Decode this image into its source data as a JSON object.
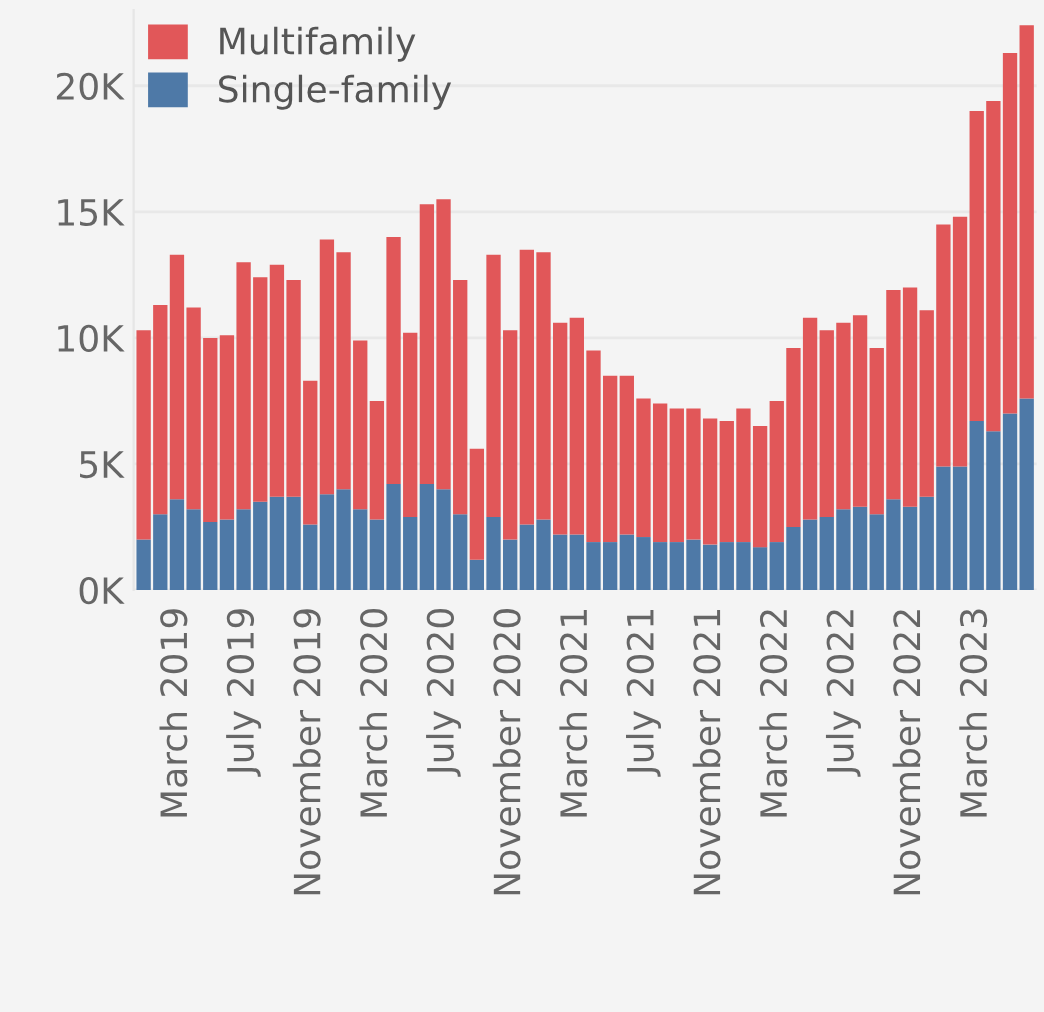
{
  "chart_data": {
    "type": "bar",
    "stacked": true,
    "categories": [
      null,
      null,
      "March 2019",
      null,
      null,
      null,
      "July 2019",
      null,
      null,
      null,
      "November 2019",
      null,
      null,
      null,
      "March 2020",
      null,
      null,
      null,
      "July 2020",
      null,
      null,
      null,
      "November 2020",
      null,
      null,
      null,
      "March 2021",
      null,
      null,
      null,
      "July 2021",
      null,
      null,
      null,
      "November 2021",
      null,
      null,
      null,
      "March 2022",
      null,
      null,
      null,
      "July 2022",
      null,
      null,
      null,
      "November 2022",
      null,
      null,
      null,
      "March 2023",
      null,
      null,
      null
    ],
    "series": [
      {
        "name": "Single-family",
        "color": "#4e79a7",
        "values": [
          2000,
          3000,
          3600,
          3200,
          2700,
          2800,
          3200,
          3500,
          3700,
          3700,
          2600,
          3800,
          4000,
          3200,
          2800,
          4200,
          2900,
          4200,
          4000,
          3000,
          1200,
          2900,
          2000,
          2600,
          2800,
          2200,
          2200,
          1900,
          1900,
          2200,
          2100,
          1900,
          1900,
          2000,
          1800,
          1900,
          1900,
          1700,
          1900,
          2500,
          2800,
          2900,
          3200,
          3300,
          3000,
          3600,
          3300,
          3700,
          4900,
          4900,
          6700,
          6300,
          7000,
          7600
        ]
      },
      {
        "name": "Multifamily",
        "color": "#e15759",
        "values": [
          8300,
          8300,
          9700,
          8000,
          7300,
          7300,
          9800,
          8900,
          9200,
          8600,
          5700,
          10100,
          9400,
          6700,
          4700,
          9800,
          7300,
          11100,
          11500,
          9300,
          4400,
          10400,
          8300,
          10900,
          10600,
          8400,
          8600,
          7600,
          6600,
          6300,
          5500,
          5500,
          5300,
          5200,
          5000,
          4800,
          5300,
          4800,
          5600,
          7100,
          8000,
          7400,
          7400,
          7600,
          6600,
          8300,
          8700,
          7400,
          9600,
          9900,
          12300,
          13100,
          14300,
          14800
        ]
      }
    ],
    "ylim": [
      0,
      23000
    ],
    "yticks": [
      {
        "value": 0,
        "label": "0K"
      },
      {
        "value": 5000,
        "label": "5K"
      },
      {
        "value": 10000,
        "label": "10K"
      },
      {
        "value": 15000,
        "label": "15K"
      },
      {
        "value": 20000,
        "label": "20K"
      }
    ],
    "grid": "y",
    "legend": "top left"
  }
}
